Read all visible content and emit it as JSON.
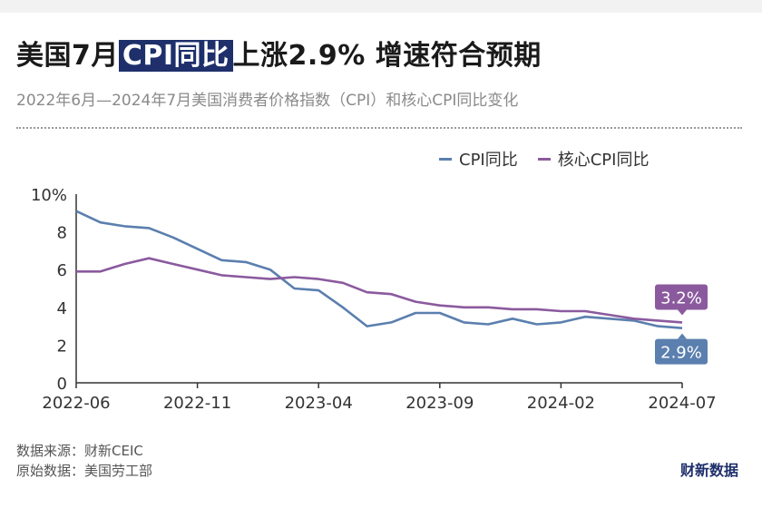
{
  "title": {
    "prefix": "美国7月",
    "highlight": "CPI同比",
    "suffix": "上涨2.9% 增速符合预期"
  },
  "subtitle": "2022年6月—2024年7月美国消费者价格指数（CPI）和核心CPI同比变化",
  "footer": {
    "source": "数据来源：财新CEIC",
    "origin": "原始数据：美国劳工部"
  },
  "brand": "财新数据",
  "colors": {
    "cpi": "#5b7fae",
    "core": "#8b5a9e",
    "axis": "#333333",
    "highlight_bg": "#1e2f6b"
  },
  "chart_data": {
    "type": "line",
    "title": "",
    "xlabel": "",
    "ylabel": "",
    "ylim": [
      0,
      10
    ],
    "y_ticks": [
      "0",
      "2",
      "4",
      "6",
      "8",
      "10%"
    ],
    "x_tick_labels": [
      "2022-06",
      "2022-11",
      "2023-04",
      "2023-09",
      "2024-02",
      "2024-07"
    ],
    "x": [
      "2022-06",
      "2022-07",
      "2022-08",
      "2022-09",
      "2022-10",
      "2022-11",
      "2022-12",
      "2023-01",
      "2023-02",
      "2023-03",
      "2023-04",
      "2023-05",
      "2023-06",
      "2023-07",
      "2023-08",
      "2023-09",
      "2023-10",
      "2023-11",
      "2023-12",
      "2024-01",
      "2024-02",
      "2024-03",
      "2024-04",
      "2024-05",
      "2024-06",
      "2024-07"
    ],
    "legend_position": "top-right",
    "grid": false,
    "series": [
      {
        "name": "CPI同比",
        "values": [
          9.1,
          8.5,
          8.3,
          8.2,
          7.7,
          7.1,
          6.5,
          6.4,
          6.0,
          5.0,
          4.9,
          4.0,
          3.0,
          3.2,
          3.7,
          3.7,
          3.2,
          3.1,
          3.4,
          3.1,
          3.2,
          3.5,
          3.4,
          3.3,
          3.0,
          2.9
        ],
        "end_label": "2.9%"
      },
      {
        "name": "核心CPI同比",
        "values": [
          5.9,
          5.9,
          6.3,
          6.6,
          6.3,
          6.0,
          5.7,
          5.6,
          5.5,
          5.6,
          5.5,
          5.3,
          4.8,
          4.7,
          4.3,
          4.1,
          4.0,
          4.0,
          3.9,
          3.9,
          3.8,
          3.8,
          3.6,
          3.4,
          3.3,
          3.2
        ],
        "end_label": "3.2%"
      }
    ]
  }
}
